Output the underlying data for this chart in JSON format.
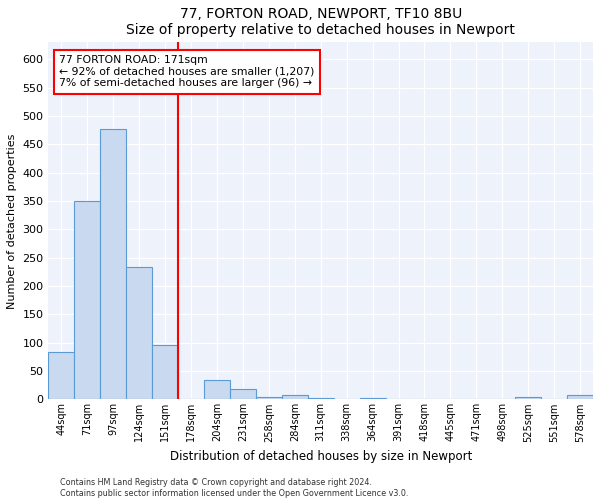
{
  "title1": "77, FORTON ROAD, NEWPORT, TF10 8BU",
  "title2": "Size of property relative to detached houses in Newport",
  "xlabel": "Distribution of detached houses by size in Newport",
  "ylabel": "Number of detached properties",
  "bin_labels": [
    "44sqm",
    "71sqm",
    "97sqm",
    "124sqm",
    "151sqm",
    "178sqm",
    "204sqm",
    "231sqm",
    "258sqm",
    "284sqm",
    "311sqm",
    "338sqm",
    "364sqm",
    "391sqm",
    "418sqm",
    "445sqm",
    "471sqm",
    "498sqm",
    "525sqm",
    "551sqm",
    "578sqm"
  ],
  "bar_heights": [
    83,
    350,
    478,
    234,
    96,
    0,
    35,
    18,
    5,
    7,
    3,
    0,
    3,
    0,
    0,
    0,
    0,
    0,
    5,
    0,
    8
  ],
  "bar_color": "#c9d9f0",
  "bar_edge_color": "#5b9bd5",
  "vline_x": 5,
  "vline_color": "red",
  "annotation_text": "77 FORTON ROAD: 171sqm\n← 92% of detached houses are smaller (1,207)\n7% of semi-detached houses are larger (96) →",
  "annotation_box_color": "white",
  "annotation_box_edge": "red",
  "footer1": "Contains HM Land Registry data © Crown copyright and database right 2024.",
  "footer2": "Contains public sector information licensed under the Open Government Licence v3.0.",
  "ylim": [
    0,
    630
  ],
  "yticks": [
    0,
    50,
    100,
    150,
    200,
    250,
    300,
    350,
    400,
    450,
    500,
    550,
    600
  ],
  "background_color": "#eef2fb",
  "grid_color": "#ffffff",
  "title1_fontsize": 10,
  "title2_fontsize": 9
}
